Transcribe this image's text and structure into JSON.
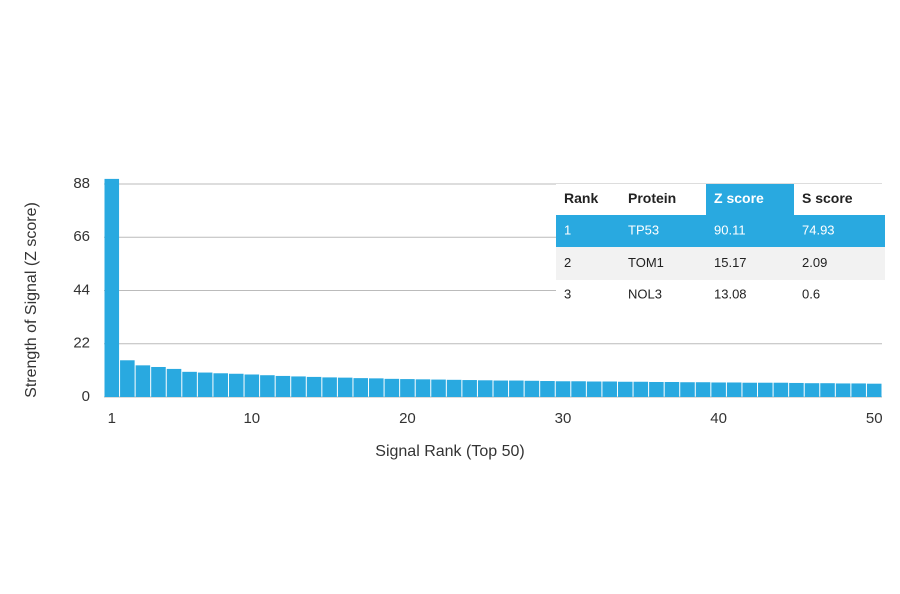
{
  "chart_data": {
    "type": "bar",
    "x_label": "Signal Rank (Top 50)",
    "y_label": "Strength of Signal (Z score)",
    "x": [
      1,
      2,
      3,
      4,
      5,
      6,
      7,
      8,
      9,
      10,
      11,
      12,
      13,
      14,
      15,
      16,
      17,
      18,
      19,
      20,
      21,
      22,
      23,
      24,
      25,
      26,
      27,
      28,
      29,
      30,
      31,
      32,
      33,
      34,
      35,
      36,
      37,
      38,
      39,
      40,
      41,
      42,
      43,
      44,
      45,
      46,
      47,
      48,
      49,
      50
    ],
    "values": [
      90.11,
      15.17,
      13.08,
      12.4,
      11.6,
      10.4,
      10.1,
      9.8,
      9.6,
      9.3,
      9.0,
      8.7,
      8.5,
      8.3,
      8.1,
      8.0,
      7.8,
      7.7,
      7.5,
      7.4,
      7.3,
      7.2,
      7.1,
      7.0,
      6.9,
      6.8,
      6.8,
      6.7,
      6.6,
      6.5,
      6.5,
      6.4,
      6.4,
      6.3,
      6.3,
      6.2,
      6.2,
      6.1,
      6.1,
      6.0,
      6.0,
      5.9,
      5.9,
      5.9,
      5.8,
      5.7,
      5.7,
      5.6,
      5.6,
      5.5
    ],
    "color": "#29a9e0",
    "xlim": [
      0.5,
      50.5
    ],
    "xticks": [
      1,
      10,
      20,
      30,
      40,
      50
    ],
    "ylim": [
      0,
      88
    ],
    "yticks": [
      0,
      22,
      44,
      66,
      88
    ],
    "grid": true
  },
  "table": {
    "columns": [
      "Rank",
      "Protein",
      "Z score",
      "S score"
    ],
    "rows": [
      [
        1,
        "TP53",
        90.11,
        74.93
      ],
      [
        2,
        "TOM1",
        15.17,
        2.09
      ],
      [
        3,
        "NOL3",
        13.08,
        0.6
      ]
    ],
    "highlight_row": 0,
    "highlight_column": 2,
    "highlight_color": "#29a9e0"
  }
}
